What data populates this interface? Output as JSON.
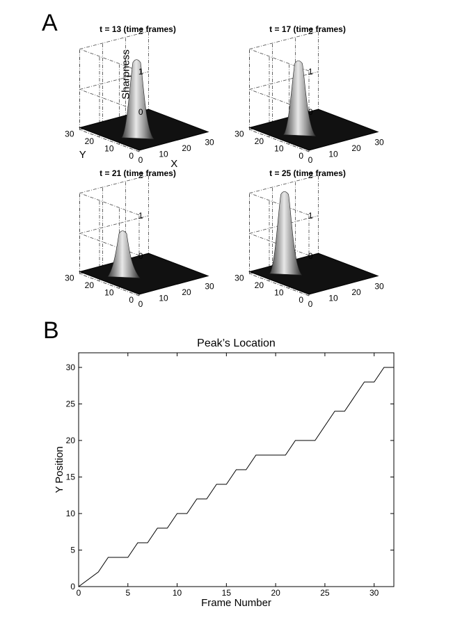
{
  "panels": {
    "a_label": "A",
    "b_label": "B"
  },
  "chart_data": [
    {
      "type": "surface",
      "title": "t = 13 (time frames)",
      "zlabel": "Sharpness",
      "ylabel": "Y",
      "xlabel": "X",
      "x_ticks": [
        "0",
        "10",
        "20",
        "30"
      ],
      "y_ticks": [
        "0",
        "10",
        "20",
        "30"
      ],
      "z_ticks": [
        "0",
        "1",
        "2"
      ],
      "zlim": [
        0,
        2
      ],
      "peak": {
        "x": 10,
        "y": 13,
        "z": 1.9
      },
      "colormap": "gray"
    },
    {
      "type": "surface",
      "title": "t = 17 (time frames)",
      "zlabel": "",
      "ylabel": "",
      "xlabel": "",
      "x_ticks": [
        "0",
        "10",
        "20",
        "30"
      ],
      "y_ticks": [
        "0",
        "10",
        "20",
        "30"
      ],
      "z_ticks": [
        "0",
        "1",
        "2"
      ],
      "zlim": [
        0,
        2
      ],
      "peak": {
        "x": 10,
        "y": 17,
        "z": 1.8
      },
      "colormap": "gray"
    },
    {
      "type": "surface",
      "title": "t = 21 (time frames)",
      "zlabel": "",
      "ylabel": "",
      "xlabel": "",
      "x_ticks": [
        "0",
        "10",
        "20",
        "30"
      ],
      "y_ticks": [
        "0",
        "10",
        "20",
        "30"
      ],
      "z_ticks": [
        "0",
        "1",
        "2"
      ],
      "zlim": [
        0,
        2
      ],
      "peak": {
        "x": 10,
        "y": 20,
        "z": 1.1
      },
      "colormap": "gray"
    },
    {
      "type": "surface",
      "title": "t = 25 (time frames)",
      "zlabel": "",
      "ylabel": "",
      "xlabel": "",
      "x_ticks": [
        "0",
        "10",
        "20",
        "30"
      ],
      "y_ticks": [
        "0",
        "10",
        "20",
        "30"
      ],
      "z_ticks": [
        "0",
        "1",
        "2"
      ],
      "zlim": [
        0,
        2
      ],
      "peak": {
        "x": 10,
        "y": 24,
        "z": 2.0
      },
      "colormap": "gray"
    },
    {
      "type": "line",
      "title": "Peak’s Location",
      "xlabel": "Frame Number",
      "ylabel": "Y Position",
      "xlim": [
        0,
        32
      ],
      "ylim": [
        0,
        32
      ],
      "x_ticks": [
        0,
        5,
        10,
        15,
        20,
        25,
        30
      ],
      "y_ticks": [
        0,
        5,
        10,
        15,
        20,
        25,
        30
      ],
      "series": [
        {
          "x": [
            0,
            2,
            3,
            5,
            6,
            7,
            8,
            9,
            10,
            11,
            12,
            13,
            14,
            15,
            16,
            17,
            18,
            21,
            22,
            24,
            26,
            27,
            29,
            30,
            31,
            32
          ],
          "y": [
            0,
            2,
            4,
            4,
            6,
            6,
            8,
            8,
            10,
            10,
            12,
            12,
            14,
            14,
            16,
            16,
            18,
            18,
            20,
            20,
            24,
            24,
            28,
            28,
            30,
            30
          ]
        }
      ]
    }
  ]
}
